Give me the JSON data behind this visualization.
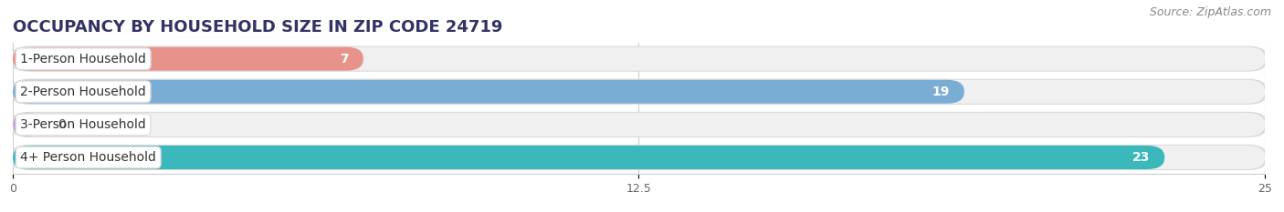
{
  "title": "OCCUPANCY BY HOUSEHOLD SIZE IN ZIP CODE 24719",
  "source": "Source: ZipAtlas.com",
  "categories": [
    "1-Person Household",
    "2-Person Household",
    "3-Person Household",
    "4+ Person Household"
  ],
  "values": [
    7,
    19,
    0,
    23
  ],
  "bar_colors": [
    "#e8928c",
    "#7aadd4",
    "#c4a8d4",
    "#3ab8bc"
  ],
  "xlim": [
    0,
    25
  ],
  "xticks": [
    0,
    12.5,
    25
  ],
  "title_fontsize": 13,
  "source_fontsize": 9,
  "label_fontsize": 10,
  "value_fontsize": 10,
  "bar_height": 0.72,
  "background_color": "#ffffff"
}
